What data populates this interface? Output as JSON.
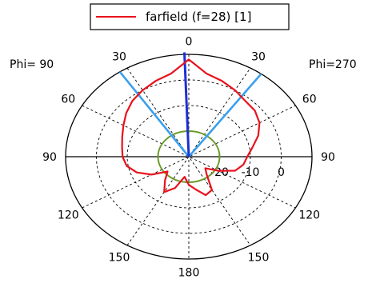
{
  "chart_data": {
    "type": "polar",
    "legend": {
      "label": "farfield (f=28) [1]",
      "color": "#e8121c",
      "placement": "top"
    },
    "phi_labels": {
      "left": "Phi= 90",
      "right": "Phi=270"
    },
    "angle_ticks": [
      {
        "deg": 0,
        "label": "0"
      },
      {
        "deg": 30,
        "label": "30"
      },
      {
        "deg": 60,
        "label": "60"
      },
      {
        "deg": 90,
        "label": "90"
      },
      {
        "deg": 120,
        "label": "120"
      },
      {
        "deg": 150,
        "label": "150"
      },
      {
        "deg": 180,
        "label": "180"
      },
      {
        "deg": -30,
        "label": "30"
      },
      {
        "deg": -60,
        "label": "60"
      },
      {
        "deg": -90,
        "label": "90"
      },
      {
        "deg": -120,
        "label": "120"
      },
      {
        "deg": -150,
        "label": "150"
      }
    ],
    "radial_ticks": [
      "-20",
      "-10",
      "0"
    ],
    "radial_range": [
      -30,
      10
    ],
    "grid_rings_db": [
      -20,
      -10,
      0,
      10
    ],
    "colors": {
      "pattern": "#e8121c",
      "main_lobe": "#1f2fd6",
      "beamwidth": "#3aa0ee",
      "threshold": "#6a9a2a",
      "grid": "#000000"
    },
    "main_lobe_direction_deg": 2,
    "beamwidth_lines_deg": [
      -36,
      34
    ],
    "threshold_level_db": -20,
    "series": [
      {
        "name": "farfield (f=28) [1]",
        "theta_deg": [
          -180,
          -170,
          -160,
          -150,
          -140,
          -130,
          -120,
          -110,
          -100,
          -90,
          -80,
          -70,
          -60,
          -50,
          -40,
          -30,
          -20,
          -10,
          0,
          10,
          20,
          30,
          40,
          50,
          60,
          70,
          80,
          90,
          100,
          110,
          120,
          130,
          140,
          150,
          160,
          170,
          180
        ],
        "value_db": [
          -19,
          -17,
          -14,
          -15,
          -21,
          -23,
          -19,
          -14,
          -12,
          -11,
          -9,
          -6,
          -3.5,
          -2,
          -1.5,
          0,
          1.5,
          3,
          8,
          3,
          1.5,
          0,
          -1.5,
          -3.5,
          -5.5,
          -7,
          -8,
          -8.5,
          -9.5,
          -12,
          -16,
          -21,
          -18,
          -14,
          -17,
          -22,
          -19
        ]
      }
    ]
  }
}
